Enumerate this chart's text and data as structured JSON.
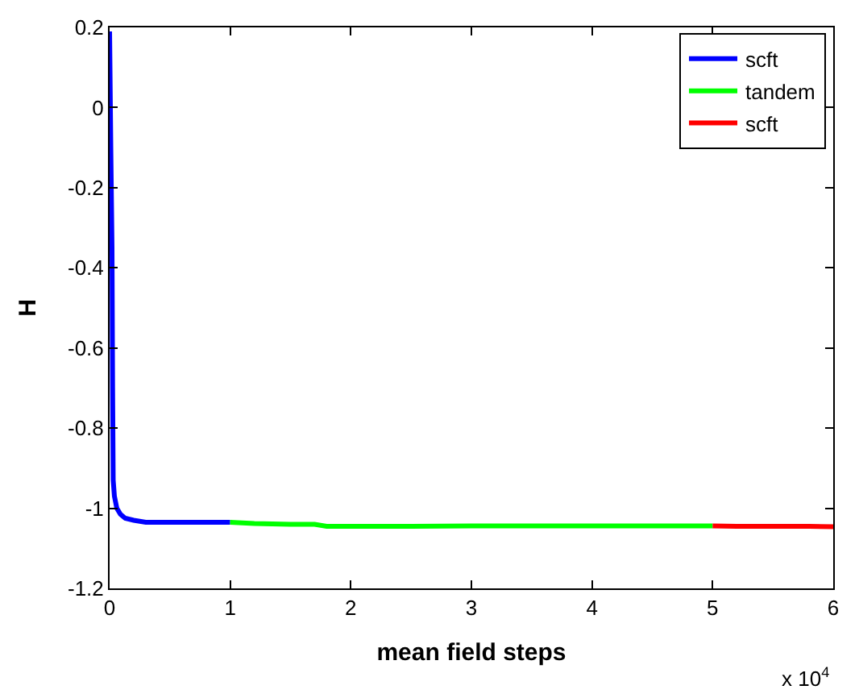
{
  "chart_data": {
    "type": "line",
    "xlabel": "mean field steps",
    "ylabel": "H",
    "series": [
      {
        "name": "scft",
        "color": "#0000ff",
        "x": [
          0,
          0.01,
          0.02,
          0.025,
          0.03,
          0.04,
          0.06,
          0.09,
          0.13,
          0.2,
          0.3,
          0.5,
          0.7,
          1.0
        ],
        "values": [
          0.19,
          -0.1,
          -0.35,
          -0.7,
          -0.93,
          -0.97,
          -1.0,
          -1.015,
          -1.025,
          -1.03,
          -1.035,
          -1.035,
          -1.035,
          -1.035
        ]
      },
      {
        "name": "tandem",
        "color": "#00ff00",
        "x": [
          1.0,
          1.2,
          1.5,
          1.7,
          1.8,
          2.0,
          2.5,
          3.0,
          3.5,
          4.0,
          4.5,
          5.0
        ],
        "values": [
          -1.035,
          -1.038,
          -1.04,
          -1.04,
          -1.045,
          -1.045,
          -1.045,
          -1.044,
          -1.044,
          -1.044,
          -1.044,
          -1.044
        ]
      },
      {
        "name": "scft",
        "color": "#ff0000",
        "x": [
          5.0,
          5.2,
          5.5,
          5.8,
          6.0
        ],
        "values": [
          -1.044,
          -1.045,
          -1.045,
          -1.045,
          -1.046
        ]
      }
    ],
    "xlim": [
      0,
      6
    ],
    "ylim": [
      -1.2,
      0.2
    ],
    "xticks": [
      0,
      1,
      2,
      3,
      4,
      5,
      6
    ],
    "yticks": [
      -1.2,
      -1,
      -0.8,
      -0.6,
      -0.4,
      -0.2,
      0,
      0.2
    ],
    "annotations": [
      "x 10$^{4}$"
    ],
    "legend": "top right",
    "marker": "none",
    "line_style": "solid"
  }
}
